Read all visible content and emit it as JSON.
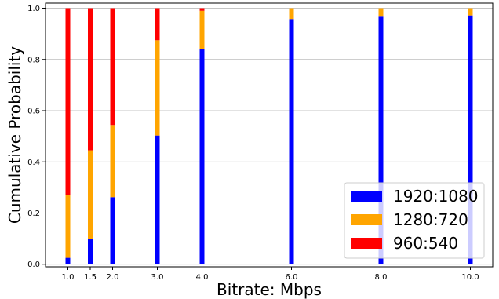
{
  "chart_data": {
    "type": "bar",
    "stacked": true,
    "xlabel": "Bitrate: Mbps",
    "ylabel": "Cumulative Probability",
    "x_tick_labels": [
      "1.0",
      "1.5",
      "2.0",
      "3.0",
      "4.0",
      "6.0",
      "8.0",
      "10.0"
    ],
    "y_tick_labels": [
      "0.0",
      "0.2",
      "0.4",
      "0.6",
      "0.8",
      "1.0"
    ],
    "x": [
      1.0,
      1.5,
      2.0,
      3.0,
      4.0,
      6.0,
      8.0,
      10.0
    ],
    "xlim": [
      0.5,
      10.5
    ],
    "ylim": [
      -0.01,
      1.02
    ],
    "grid": "horizontal",
    "legend_position": "bottom-right",
    "series": [
      {
        "name": "1920:1080",
        "color": "#0000ff",
        "values": [
          0.025,
          0.098,
          0.262,
          0.503,
          0.842,
          0.958,
          0.967,
          0.972
        ]
      },
      {
        "name": "1280:720",
        "color": "#ffa500",
        "values": [
          0.247,
          0.347,
          0.282,
          0.372,
          0.148,
          0.042,
          0.033,
          0.028
        ]
      },
      {
        "name": "960:540",
        "color": "#ff0000",
        "values": [
          0.728,
          0.555,
          0.456,
          0.125,
          0.01,
          0.0,
          0.0,
          0.0
        ]
      }
    ]
  }
}
